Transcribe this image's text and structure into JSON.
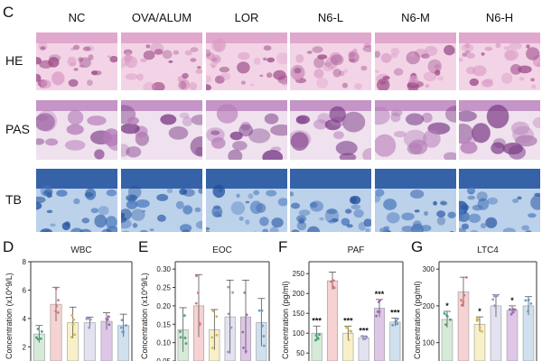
{
  "panel_c": {
    "letter": "C",
    "columns": [
      "NC",
      "OVA/ALUM",
      "LOR",
      "N6-L",
      "N6-M",
      "N6-H"
    ],
    "rows": [
      {
        "label": "HE",
        "tint": "#d99ac4",
        "base": "#f3d4e6",
        "accent": "#9c4c88"
      },
      {
        "label": "PAS",
        "tint": "#b57bb8",
        "base": "#efe1ee",
        "accent": "#7a3a86"
      },
      {
        "label": "TB",
        "tint": "#4a78bd",
        "base": "#bcd1ea",
        "accent": "#1f4f9c"
      }
    ]
  },
  "chart_data": [
    {
      "panel": "D",
      "type": "bar",
      "title": "WBC",
      "ylabel": "Concentration (x10^9/L)",
      "yticks": [
        "2",
        "4",
        "6",
        "8"
      ],
      "ylim": [
        1,
        8
      ],
      "values": [
        2.9,
        5.0,
        3.7,
        3.7,
        3.8,
        3.5
      ],
      "errors": [
        0.6,
        1.2,
        1.1,
        0.4,
        0.6,
        0.8
      ],
      "stars": [
        "",
        "",
        "",
        "",
        "",
        ""
      ]
    },
    {
      "panel": "E",
      "type": "bar",
      "title": "EOC",
      "ylabel": "Concentration (x10^9/L)",
      "yticks": [
        "0.05",
        "0.10",
        "0.15",
        "0.20",
        "0.25",
        "0.30"
      ],
      "ylim": [
        0.05,
        0.32
      ],
      "values": [
        0.135,
        0.2,
        0.135,
        0.17,
        0.17,
        0.155
      ],
      "errors": [
        0.06,
        0.085,
        0.055,
        0.1,
        0.1,
        0.065
      ],
      "stars": [
        "",
        "",
        "",
        "",
        "",
        ""
      ]
    },
    {
      "panel": "F",
      "type": "bar",
      "title": "PAF",
      "ylabel": "Concentration (pg/ml)",
      "yticks": [
        "50",
        "100",
        "150",
        "200",
        "250"
      ],
      "ylim": [
        30,
        280
      ],
      "values": [
        100,
        232,
        100,
        88,
        163,
        128
      ],
      "errors": [
        18,
        22,
        18,
        5,
        22,
        10
      ],
      "stars": [
        "***",
        "",
        "***",
        "***",
        "***",
        "***"
      ]
    },
    {
      "panel": "G",
      "type": "bar",
      "title": "LTC4",
      "ylabel": "Concentration (pg/ml)",
      "yticks": [
        "100",
        "200",
        "300"
      ],
      "ylim": [
        50,
        320
      ],
      "values": [
        163,
        238,
        150,
        200,
        188,
        200
      ],
      "errors": [
        22,
        40,
        20,
        30,
        12,
        25
      ],
      "stars": [
        "*",
        "",
        "*",
        "",
        "*",
        ""
      ]
    }
  ],
  "bar_colors": [
    "#d6ead8",
    "#f6d2d2",
    "#f8f0c8",
    "#e2e2f0",
    "#ddc6e6",
    "#cfe0ee"
  ],
  "dot_colors": [
    "#4aa37a",
    "#d2787c",
    "#d8b84a",
    "#9a9ac8",
    "#9a6ab0",
    "#6f9bc6"
  ],
  "axis_color": "#333333"
}
